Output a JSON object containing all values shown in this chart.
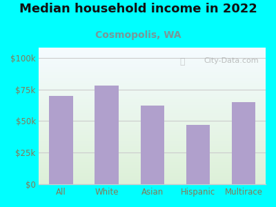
{
  "title": "Median household income in 2022",
  "subtitle": "Cosmopolis, WA",
  "categories": [
    "All",
    "White",
    "Asian",
    "Hispanic",
    "Multirace"
  ],
  "values": [
    70000,
    78000,
    62000,
    47000,
    65000
  ],
  "bar_color": "#b0a0cc",
  "background_outer": "#00ffff",
  "background_inner_bottom": "#ddf0d8",
  "background_inner_top": "#f5fbff",
  "yticks": [
    0,
    25000,
    50000,
    75000,
    100000
  ],
  "ytick_labels": [
    "$0",
    "$25k",
    "$50k",
    "$75k",
    "$100k"
  ],
  "ylim": [
    0,
    108000
  ],
  "title_fontsize": 13,
  "subtitle_fontsize": 10,
  "tick_fontsize": 8.5,
  "tick_color": "#887755",
  "subtitle_color": "#779999",
  "title_color": "#111111",
  "watermark": "City-Data.com",
  "grid_color": "#cccccc",
  "bar_width": 0.52
}
